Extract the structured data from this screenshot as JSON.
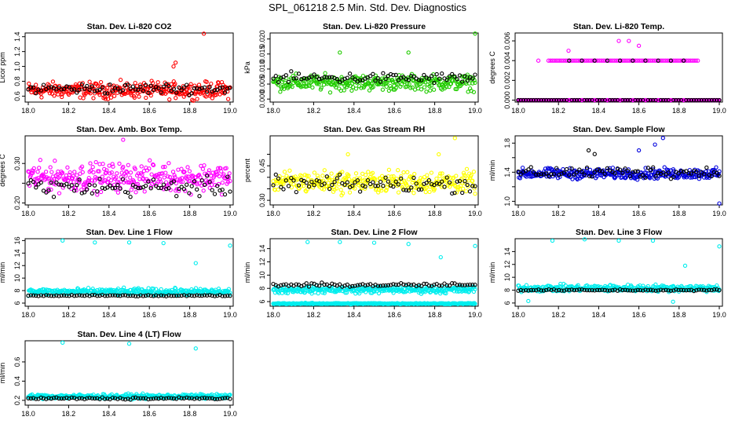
{
  "title": "SPL_061218  2.5 Min. Std. Dev. Diagnostics",
  "chart_data": [
    {
      "type": "scatter",
      "title": "Stan. Dev. Li-820 CO2",
      "ylabel": "Licor ppm",
      "xlim": [
        18.0,
        19.0
      ],
      "ylim": [
        0.52,
        1.45
      ],
      "x_ticks": [
        "18.0",
        "18.2",
        "18.4",
        "18.6",
        "18.8",
        "19.0"
      ],
      "y_ticks": [
        0.6,
        0.8,
        1.0,
        1.2,
        1.4
      ],
      "y_tick_labels": [
        "0.6",
        "0.8",
        "1.0",
        "1.2",
        "1.4"
      ],
      "series": [
        {
          "color": "#ff0000",
          "base": 0.68,
          "noise": 0.09,
          "outliers": [
            [
              18.87,
              1.44
            ],
            [
              18.73,
              1.05
            ],
            [
              18.72,
              1.0
            ]
          ]
        },
        {
          "color": "#000000",
          "base": 0.7,
          "noise": 0.06,
          "outliers": []
        }
      ]
    },
    {
      "type": "scatter",
      "title": "Stan. Dev. Li-820 Pressure",
      "ylabel": "kPa",
      "xlim": [
        18.0,
        19.0
      ],
      "ylim": [
        -0.001,
        0.022
      ],
      "x_ticks": [
        "18.0",
        "18.2",
        "18.4",
        "18.6",
        "18.8",
        "19.0"
      ],
      "y_ticks": [
        0.0,
        0.005,
        0.01,
        0.015,
        0.02
      ],
      "y_tick_labels": [
        "0.000",
        "0.005",
        "0.010",
        "0.015",
        "0.020"
      ],
      "series": [
        {
          "color": "#22cc00",
          "base": 0.0055,
          "noise": 0.0022,
          "outliers": [
            [
              18.33,
              0.0155
            ],
            [
              18.67,
              0.0155
            ],
            [
              19.0,
              0.0218
            ]
          ]
        },
        {
          "color": "#000000",
          "base": 0.007,
          "noise": 0.0015,
          "outliers": []
        }
      ]
    },
    {
      "type": "scatter",
      "title": "Stan. Dev. Li-820 Temp.",
      "ylabel": "degrees C",
      "xlim": [
        18.0,
        19.0
      ],
      "ylim": [
        -0.0002,
        0.0068
      ],
      "x_ticks": [
        "18.0",
        "18.2",
        "18.4",
        "18.6",
        "18.8",
        "19.0"
      ],
      "y_ticks": [
        0.0,
        0.002,
        0.004,
        0.006
      ],
      "y_tick_labels": [
        "0.000",
        "0.002",
        "0.004",
        "0.006"
      ],
      "series": [
        {
          "color": "#ff00ff",
          "base": 0.0,
          "noise": 0.0,
          "outliers": [
            [
              18.1,
              0.004
            ],
            [
              18.25,
              0.005
            ],
            [
              18.5,
              0.006
            ],
            [
              18.55,
              0.006
            ],
            [
              18.6,
              0.0055
            ]
          ]
        },
        {
          "color": "#000000",
          "base": 0.0,
          "noise": 0.0,
          "outliers": []
        }
      ]
    },
    {
      "type": "scatter",
      "title": "Stan. Dev. Amb. Box Temp.",
      "ylabel": "degrees C",
      "xlim": [
        18.0,
        19.0
      ],
      "ylim": [
        0.195,
        0.37
      ],
      "x_ticks": [
        "18.0",
        "18.2",
        "18.4",
        "18.6",
        "18.8",
        "19.0"
      ],
      "y_ticks": [
        0.2,
        0.25,
        0.3
      ],
      "y_tick_labels": [
        "0.20",
        "",
        "0.30"
      ],
      "series": [
        {
          "color": "#ff00ff",
          "base": 0.265,
          "noise": 0.03,
          "outliers": [
            [
              18.47,
              0.36
            ]
          ]
        },
        {
          "color": "#000000",
          "base": 0.24,
          "noise": 0.02,
          "outliers": []
        }
      ]
    },
    {
      "type": "scatter",
      "title": "Stan. Dev. Gas Stream RH",
      "ylabel": "percent",
      "xlim": [
        18.0,
        19.0
      ],
      "ylim": [
        0.28,
        0.58
      ],
      "x_ticks": [
        "18.0",
        "18.2",
        "18.4",
        "18.6",
        "18.8",
        "19.0"
      ],
      "y_ticks": [
        0.3,
        0.35,
        0.4,
        0.45,
        0.5
      ],
      "y_tick_labels": [
        "0.30",
        "",
        "",
        "0.45",
        ""
      ],
      "series": [
        {
          "color": "#ffff00",
          "base": 0.38,
          "noise": 0.04,
          "outliers": [
            [
              18.9,
              0.57
            ],
            [
              18.37,
              0.5
            ],
            [
              18.82,
              0.5
            ]
          ]
        },
        {
          "color": "#000000",
          "base": 0.37,
          "noise": 0.03,
          "outliers": []
        }
      ]
    },
    {
      "type": "scatter",
      "title": "Stan. Dev. Sample Flow",
      "ylabel": "ml/min",
      "xlim": [
        18.0,
        19.0
      ],
      "ylim": [
        0.95,
        1.9
      ],
      "x_ticks": [
        "18.0",
        "18.2",
        "18.4",
        "18.6",
        "18.8",
        "19.0"
      ],
      "y_ticks": [
        1.0,
        1.2,
        1.4,
        1.6,
        1.8
      ],
      "y_tick_labels": [
        "1.0",
        "",
        "1.4",
        "",
        "1.8"
      ],
      "series": [
        {
          "color": "#0000dd",
          "base": 1.38,
          "noise": 0.06,
          "outliers": [
            [
              18.72,
              1.87
            ],
            [
              18.68,
              1.78
            ],
            [
              18.6,
              1.7
            ],
            [
              19.0,
              0.97
            ]
          ]
        },
        {
          "color": "#000000",
          "base": 1.4,
          "noise": 0.07,
          "outliers": [
            [
              18.35,
              1.7
            ],
            [
              18.38,
              1.65
            ]
          ]
        }
      ]
    },
    {
      "type": "scatter",
      "title": "Stan. Dev. Line 1 Flow",
      "ylabel": "ml/min",
      "xlim": [
        18.0,
        19.0
      ],
      "ylim": [
        5.5,
        16.3
      ],
      "x_ticks": [
        "18.0",
        "18.2",
        "18.4",
        "18.6",
        "18.8",
        "19.0"
      ],
      "y_ticks": [
        6,
        8,
        10,
        12,
        14,
        16
      ],
      "y_tick_labels": [
        "6",
        "8",
        "10",
        "12",
        "14",
        "16"
      ],
      "series": [
        {
          "color": "#00eeee",
          "base": 7.8,
          "noise": 0.45,
          "outliers": [
            [
              18.17,
              16.0
            ],
            [
              18.33,
              15.7
            ],
            [
              18.5,
              15.7
            ],
            [
              18.67,
              15.6
            ],
            [
              18.83,
              12.4
            ],
            [
              19.0,
              15.2
            ]
          ]
        },
        {
          "color": "#000000",
          "base": 7.2,
          "noise": 0.08,
          "outliers": []
        }
      ]
    },
    {
      "type": "scatter",
      "title": "Stan. Dev. Line 2 Flow",
      "ylabel": "ml/min",
      "xlim": [
        18.0,
        19.0
      ],
      "ylim": [
        5.3,
        15.5
      ],
      "x_ticks": [
        "18.0",
        "18.2",
        "18.4",
        "18.6",
        "18.8",
        "19.0"
      ],
      "y_ticks": [
        6,
        8,
        10,
        12,
        14
      ],
      "y_tick_labels": [
        "6",
        "8",
        "10",
        "12",
        "14"
      ],
      "series": [
        {
          "color": "#00eeee",
          "base": 7.8,
          "noise": 0.45,
          "outliers": [
            [
              18.17,
              15.0
            ],
            [
              18.33,
              15.0
            ],
            [
              18.5,
              14.9
            ],
            [
              18.67,
              14.7
            ],
            [
              18.83,
              12.7
            ],
            [
              19.0,
              14.4
            ]
          ]
        },
        {
          "color": "#00eeee",
          "base": 5.7,
          "noise": 0.08,
          "outliers": []
        },
        {
          "color": "#000000",
          "base": 8.5,
          "noise": 0.25,
          "outliers": []
        }
      ]
    },
    {
      "type": "scatter",
      "title": "Stan. Dev. Line 3 Flow",
      "ylabel": "ml/min",
      "xlim": [
        18.0,
        19.0
      ],
      "ylim": [
        5.5,
        16.0
      ],
      "x_ticks": [
        "18.0",
        "18.2",
        "18.4",
        "18.6",
        "18.8",
        "19.0"
      ],
      "y_ticks": [
        6,
        8,
        10,
        12,
        14
      ],
      "y_tick_labels": [
        "6",
        "8",
        "10",
        "12",
        "14"
      ],
      "series": [
        {
          "color": "#00eeee",
          "base": 8.3,
          "noise": 0.45,
          "outliers": [
            [
              18.17,
              15.7
            ],
            [
              18.33,
              15.9
            ],
            [
              18.5,
              15.7
            ],
            [
              18.67,
              15.7
            ],
            [
              18.83,
              11.8
            ],
            [
              19.0,
              14.8
            ],
            [
              18.77,
              6.2
            ],
            [
              18.05,
              6.3
            ]
          ]
        },
        {
          "color": "#000000",
          "base": 8.0,
          "noise": 0.1,
          "outliers": []
        }
      ]
    },
    {
      "type": "scatter",
      "title": "Stan. Dev. Line 4 (LT) Flow",
      "ylabel": "ml/min",
      "xlim": [
        18.0,
        19.0
      ],
      "ylim": [
        0.15,
        0.82
      ],
      "x_ticks": [
        "18.0",
        "18.2",
        "18.4",
        "18.6",
        "18.8",
        "19.0"
      ],
      "y_ticks": [
        0.2,
        0.4,
        0.6
      ],
      "y_tick_labels": [
        "0.2",
        "0.4",
        "0.6"
      ],
      "series": [
        {
          "color": "#00eeee",
          "base": 0.24,
          "noise": 0.02,
          "outliers": [
            [
              18.17,
              0.8
            ],
            [
              18.5,
              0.79
            ],
            [
              18.83,
              0.74
            ]
          ]
        },
        {
          "color": "#000000",
          "base": 0.22,
          "noise": 0.01,
          "outliers": []
        }
      ]
    }
  ]
}
